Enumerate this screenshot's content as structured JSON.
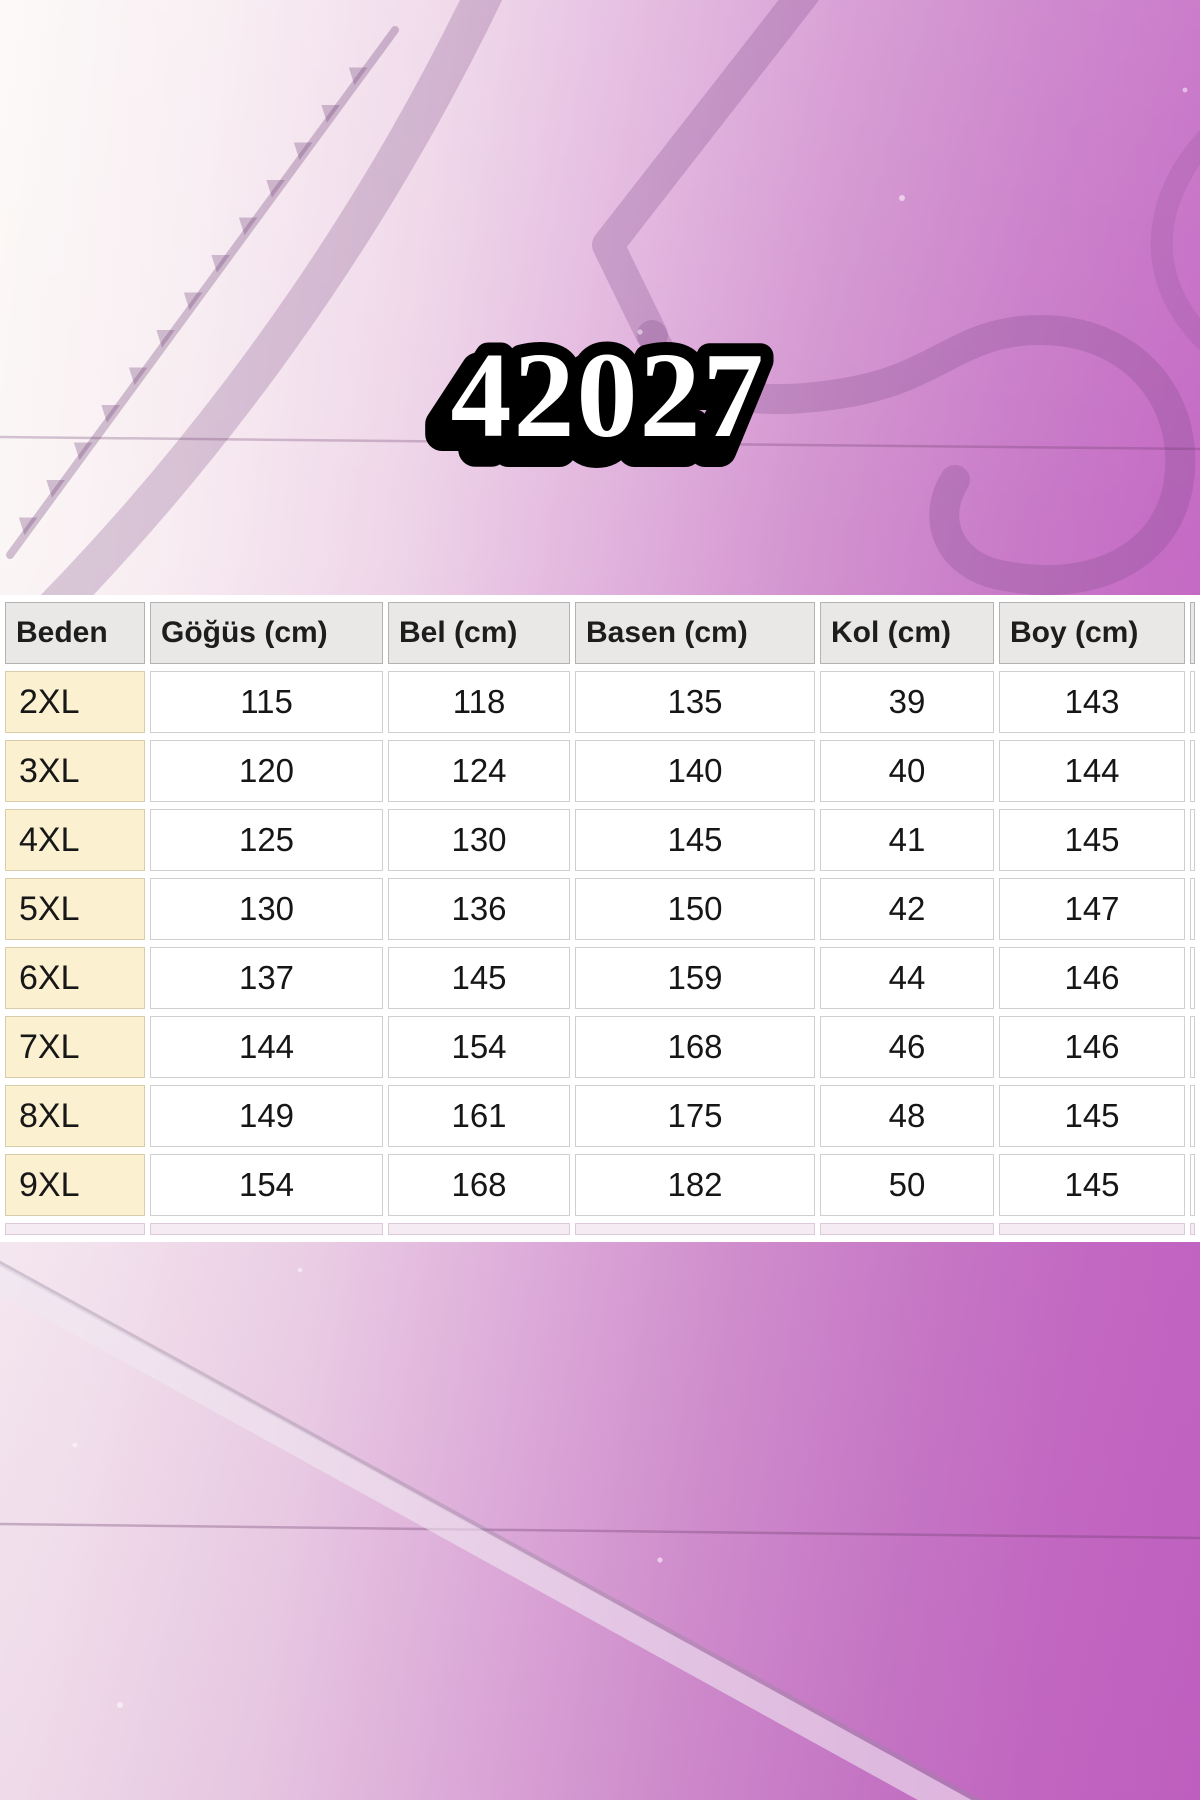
{
  "title": "42027",
  "chart_data": {
    "type": "table",
    "title": "42027",
    "columns": [
      "Beden",
      "Göğüs (cm)",
      "Bel (cm)",
      "Basen (cm)",
      "Kol (cm)",
      "Boy (cm)"
    ],
    "rows": [
      [
        "2XL",
        "115",
        "118",
        "135",
        "39",
        "143"
      ],
      [
        "3XL",
        "120",
        "124",
        "140",
        "40",
        "144"
      ],
      [
        "4XL",
        "125",
        "130",
        "145",
        "41",
        "145"
      ],
      [
        "5XL",
        "130",
        "136",
        "150",
        "42",
        "147"
      ],
      [
        "6XL",
        "137",
        "145",
        "159",
        "44",
        "146"
      ],
      [
        "7XL",
        "144",
        "154",
        "168",
        "46",
        "146"
      ],
      [
        "8XL",
        "149",
        "161",
        "175",
        "48",
        "145"
      ],
      [
        "9XL",
        "154",
        "168",
        "182",
        "50",
        "145"
      ]
    ]
  },
  "colors": {
    "background_right": "#c365c3",
    "background_left": "#fcf9f7",
    "header_bg": "#e9e8e6",
    "size_column_bg": "#fbf0d0",
    "title_fill": "#ffffff",
    "title_outline": "#000000"
  }
}
